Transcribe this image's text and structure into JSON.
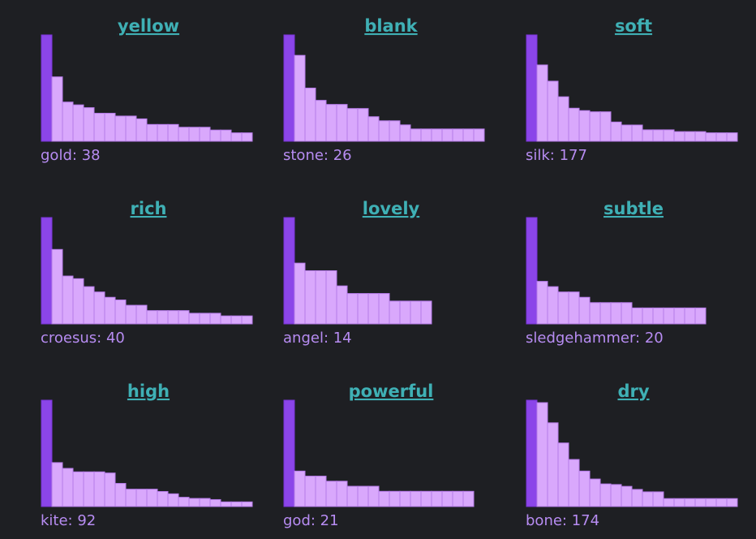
{
  "chart_data": [
    {
      "type": "bar",
      "title": "yellow",
      "caption": "gold: 38",
      "values": [
        38,
        23,
        14,
        13,
        12,
        10,
        10,
        9,
        9,
        8,
        6,
        6,
        6,
        5,
        5,
        5,
        4,
        4,
        3,
        3
      ]
    },
    {
      "type": "bar",
      "title": "blank",
      "caption": "stone: 26",
      "values": [
        26,
        21,
        13,
        10,
        9,
        9,
        8,
        8,
        6,
        5,
        5,
        4,
        3,
        3,
        3,
        3,
        3,
        3,
        3
      ]
    },
    {
      "type": "bar",
      "title": "soft",
      "caption": "silk: 177",
      "values": [
        177,
        127,
        100,
        74,
        55,
        51,
        49,
        49,
        32,
        27,
        27,
        19,
        19,
        19,
        16,
        16,
        16,
        14,
        14,
        14
      ]
    },
    {
      "type": "bar",
      "title": "rich",
      "caption": "croesus: 40",
      "values": [
        40,
        28,
        18,
        17,
        14,
        12,
        10,
        9,
        7,
        7,
        5,
        5,
        5,
        5,
        4,
        4,
        4,
        3,
        3,
        3
      ]
    },
    {
      "type": "bar",
      "title": "lovely",
      "caption": "angel: 14",
      "values": [
        14,
        8,
        7,
        7,
        7,
        5,
        4,
        4,
        4,
        4,
        3,
        3,
        3,
        3
      ]
    },
    {
      "type": "bar",
      "title": "subtle",
      "caption": "sledgehammer: 20",
      "values": [
        20,
        8,
        7,
        6,
        6,
        5,
        4,
        4,
        4,
        4,
        3,
        3,
        3,
        3,
        3,
        3,
        3
      ]
    },
    {
      "type": "bar",
      "title": "high",
      "caption": "kite: 92",
      "values": [
        92,
        38,
        33,
        30,
        30,
        30,
        29,
        20,
        15,
        15,
        15,
        13,
        11,
        8,
        7,
        7,
        6,
        4,
        4,
        4
      ]
    },
    {
      "type": "bar",
      "title": "powerful",
      "caption": "god: 21",
      "values": [
        21,
        7,
        6,
        6,
        5,
        5,
        4,
        4,
        4,
        3,
        3,
        3,
        3,
        3,
        3,
        3,
        3,
        3
      ]
    },
    {
      "type": "bar",
      "title": "dry",
      "caption": "bone: 174",
      "values": [
        174,
        170,
        137,
        104,
        77,
        58,
        45,
        37,
        36,
        33,
        28,
        24,
        24,
        13,
        13,
        13,
        13,
        13,
        13,
        13
      ]
    }
  ]
}
